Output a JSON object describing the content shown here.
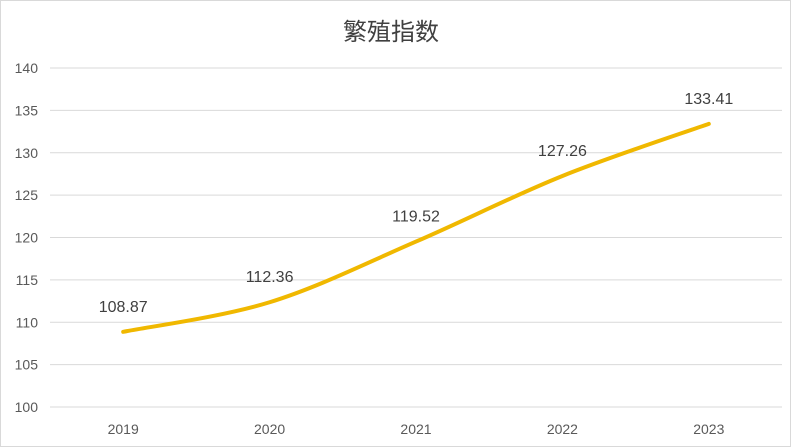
{
  "chart_data": {
    "type": "line",
    "title": "繁殖指数",
    "xlabel": "",
    "ylabel": "",
    "categories": [
      "2019",
      "2020",
      "2021",
      "2022",
      "2023"
    ],
    "series": [
      {
        "values": [
          108.87,
          112.36,
          119.52,
          127.26,
          133.41
        ]
      }
    ],
    "data_labels": [
      "108.87",
      "112.36",
      "119.52",
      "127.26",
      "133.41"
    ],
    "ylim": [
      100,
      140
    ],
    "y_ticks": [
      "100",
      "105",
      "110",
      "115",
      "120",
      "125",
      "130",
      "135",
      "140"
    ],
    "grid": true,
    "legend": "none",
    "line_color": "#F0B800",
    "grid_color": "#d9d9d9"
  }
}
